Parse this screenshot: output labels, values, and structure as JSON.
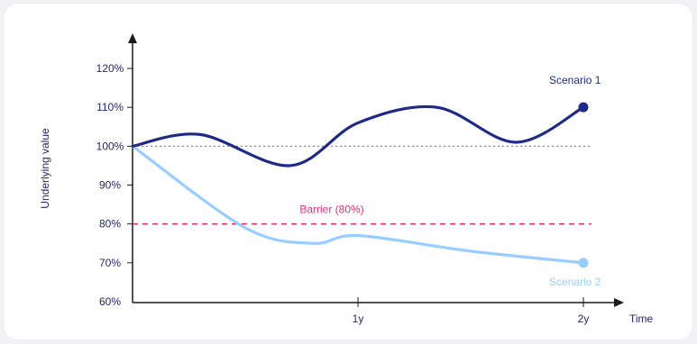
{
  "chart_data": {
    "type": "line",
    "ylabel": "Underlying value",
    "xlabel": "Time",
    "y_ticks": [
      "120%",
      "110%",
      "100%",
      "90%",
      "80%",
      "70%",
      "60%"
    ],
    "x_ticks": [
      "1y",
      "2y"
    ],
    "ylim": [
      60,
      120
    ],
    "xlim": [
      0,
      2
    ],
    "reference_line": {
      "value": 100,
      "style": "dotted"
    },
    "barrier": {
      "label": "Barrier (80%)",
      "value": 80,
      "color": "#e0336f",
      "style": "dashed"
    },
    "series": [
      {
        "name": "Scenario 1",
        "color": "#1f2a86",
        "x": [
          0,
          0.3,
          0.7,
          1.0,
          1.35,
          1.7,
          2.0
        ],
        "y": [
          100,
          103,
          95,
          106,
          110,
          101,
          110
        ]
      },
      {
        "name": "Scenario 2",
        "color": "#99ccff",
        "x": [
          0,
          0.5,
          0.8,
          1.0,
          1.5,
          2.0
        ],
        "y": [
          100,
          79,
          75,
          77,
          73,
          70
        ]
      }
    ]
  }
}
